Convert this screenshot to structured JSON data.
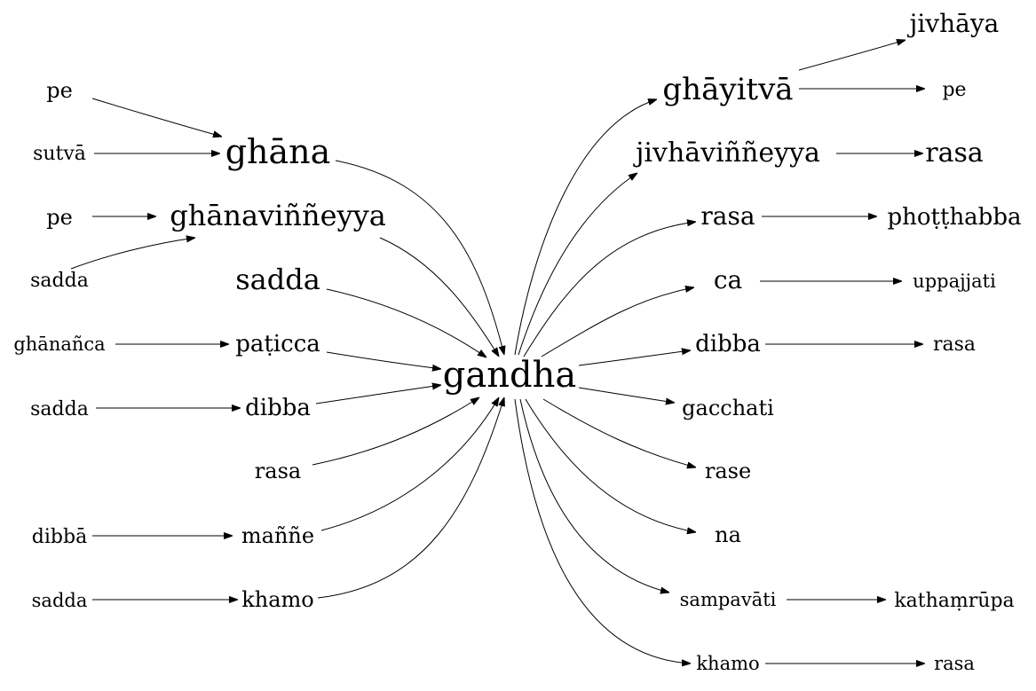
{
  "diagram": {
    "nodes": {
      "pe_a": "pe",
      "sutva": "sutvā",
      "ghana": "ghāna",
      "pe_b": "pe",
      "ghanavinneyya": "ghānaviññeyya",
      "sadda_a": "sadda",
      "sadda_b": "sadda",
      "ghananca": "ghānañca",
      "paticca": "paṭicca",
      "sadda_c": "sadda",
      "dibba_a": "dibba",
      "rasa_a": "rasa",
      "dibba_plural": "dibbā",
      "manne": "maññe",
      "sadda_d": "sadda",
      "khamo_a": "khamo",
      "gandha": "gandha",
      "jivhaya": "jivhāya",
      "ghayitva": "ghāyitvā",
      "pe_c": "pe",
      "jivhavinneyya": "jivhāviññeyya",
      "rasa_b": "rasa",
      "rasa_c": "rasa",
      "photthabba": "phoṭṭhabba",
      "ca": "ca",
      "uppajjati": "uppajjati",
      "dibba_b": "dibba",
      "rasa_d": "rasa",
      "gacchati": "gacchati",
      "rase": "rase",
      "na": "na",
      "sampavati": "sampavāti",
      "kathamrupa": "kathaṃrūpa",
      "khamo_b": "khamo",
      "rasa_e": "rasa"
    },
    "edges": [
      [
        "pe_a",
        "ghana"
      ],
      [
        "sutva",
        "ghana"
      ],
      [
        "pe_b",
        "ghanavinneyya"
      ],
      [
        "sadda_b",
        "ghanavinneyya"
      ],
      [
        "ghananca",
        "paticca"
      ],
      [
        "sadda_c",
        "dibba_a"
      ],
      [
        "dibba_plural",
        "manne"
      ],
      [
        "sadda_d",
        "khamo_a"
      ],
      [
        "ghana",
        "gandha"
      ],
      [
        "ghanavinneyya",
        "gandha"
      ],
      [
        "sadda_a",
        "gandha"
      ],
      [
        "paticca",
        "gandha"
      ],
      [
        "dibba_a",
        "gandha"
      ],
      [
        "rasa_a",
        "gandha"
      ],
      [
        "manne",
        "gandha"
      ],
      [
        "khamo_a",
        "gandha"
      ],
      [
        "gandha",
        "ghayitva"
      ],
      [
        "gandha",
        "jivhavinneyya"
      ],
      [
        "gandha",
        "rasa_c"
      ],
      [
        "gandha",
        "ca"
      ],
      [
        "gandha",
        "dibba_b"
      ],
      [
        "gandha",
        "gacchati"
      ],
      [
        "gandha",
        "rase"
      ],
      [
        "gandha",
        "na"
      ],
      [
        "gandha",
        "sampavati"
      ],
      [
        "gandha",
        "khamo_b"
      ],
      [
        "ghayitva",
        "jivhaya"
      ],
      [
        "ghayitva",
        "pe_c"
      ],
      [
        "jivhavinneyya",
        "rasa_b"
      ],
      [
        "rasa_c",
        "photthabba"
      ],
      [
        "ca",
        "uppajjati"
      ],
      [
        "dibba_b",
        "rasa_d"
      ],
      [
        "sampavati",
        "kathamrupa"
      ],
      [
        "khamo_b",
        "rasa_e"
      ]
    ],
    "colors": {
      "text": "#000000",
      "edge": "#000000",
      "background": "#ffffff"
    }
  }
}
